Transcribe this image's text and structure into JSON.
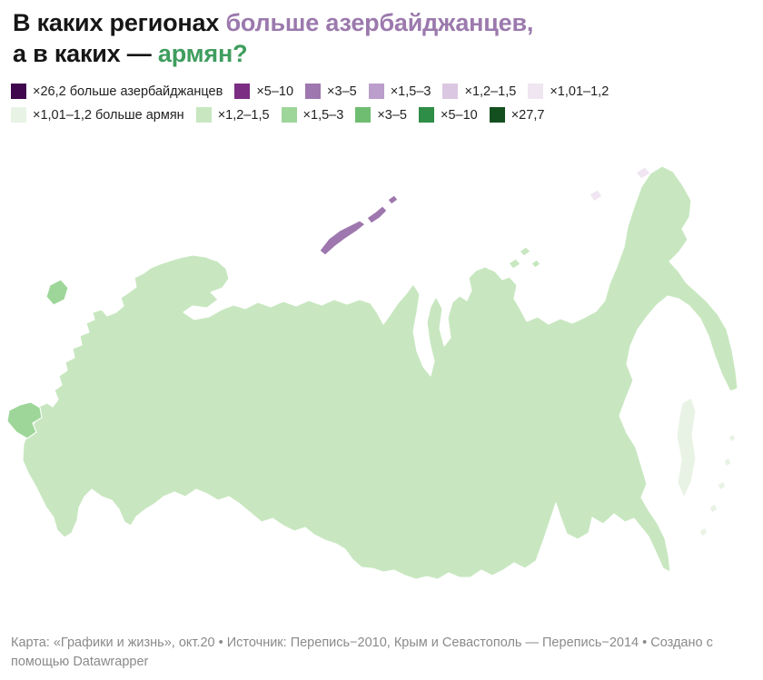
{
  "title": {
    "line1_black": "В каких регионах ",
    "line1_purple": "больше азербайджанцев,",
    "line2_black": "а в каких — ",
    "line2_green": "армян?",
    "purple_hex": "#9b79ad",
    "green_hex": "#3f9e5e",
    "black_hex": "#161616"
  },
  "footer": {
    "credits": "Карта: «Графики и жизнь», окт.20 • Источник: Перепись−2010, Крым и Севастополь — Перепись−2014 • Создано с помощью Datawrapper"
  },
  "chart_data": {
    "type": "choropleth-map",
    "geography": "Россия, субъекты федерации",
    "metric": "Во сколько раз азербайджанцев больше, чем армян (фиолетовый) или армян больше, чем азербайджанцев (зелёный)",
    "legend_position": "top",
    "buckets": [
      {
        "id": "az26_2",
        "side": "az",
        "label": "×26,2 больше азербайджанцев",
        "color": "#40074e"
      },
      {
        "id": "az5_10",
        "side": "az",
        "label": "×5–10",
        "color": "#7b2d84"
      },
      {
        "id": "az3_5",
        "side": "az",
        "label": "×3–5",
        "color": "#9e77ae"
      },
      {
        "id": "az1_5_3",
        "side": "az",
        "label": "×1,5–3",
        "color": "#bb9ecb"
      },
      {
        "id": "az1_2_1_5",
        "side": "az",
        "label": "×1,2–1,5",
        "color": "#dbc7e1"
      },
      {
        "id": "az1_01_1_2",
        "side": "az",
        "label": "×1,01–1,2",
        "color": "#efe6f2"
      },
      {
        "id": "arm1_01_1_2",
        "side": "arm",
        "label": "×1,01–1,2 больше армян",
        "color": "#e9f3e5"
      },
      {
        "id": "arm1_2_1_5",
        "side": "arm",
        "label": "×1,2–1,5",
        "color": "#c8e7c0"
      },
      {
        "id": "arm1_5_3",
        "side": "arm",
        "label": "×1,5–3",
        "color": "#9ed69a"
      },
      {
        "id": "arm3_5",
        "side": "arm",
        "label": "×3–5",
        "color": "#6fbd71"
      },
      {
        "id": "arm5_10",
        "side": "arm",
        "label": "×5–10",
        "color": "#2e8d46"
      },
      {
        "id": "arm27_7",
        "side": "arm",
        "label": "×27,7",
        "color": "#14501f"
      }
    ],
    "regions": [
      {
        "name": "other-regions-base",
        "bucket": "arm1_2_1_5"
      },
      {
        "name": "karelia-vologda",
        "bucket": "az1_01_1_2"
      },
      {
        "name": "kirov",
        "bucket": "az1_2_1_5"
      },
      {
        "name": "murmansk",
        "bucket": "az3_5"
      },
      {
        "name": "arkhangelsk",
        "bucket": "az1_5_3"
      },
      {
        "name": "nenets",
        "bucket": "az1_5_3"
      },
      {
        "name": "komi",
        "bucket": "az3_5"
      },
      {
        "name": "perm-sverdlovsk-tyumen",
        "bucket": "az3_5"
      },
      {
        "name": "krasnoyarsk",
        "bucket": "az3_5"
      },
      {
        "name": "yamalo-nenets-khanty-mansi",
        "bucket": "az5_10"
      },
      {
        "name": "chukotka",
        "bucket": "az1_01_1_2"
      },
      {
        "name": "magadan",
        "bucket": "az3_5"
      },
      {
        "name": "kamchatka",
        "bucket": "az3_5"
      },
      {
        "name": "khabarovsk",
        "bucket": "az1_5_3"
      },
      {
        "name": "amur",
        "bucket": "az1_5_3"
      },
      {
        "name": "jewish-ao",
        "bucket": "az3_5"
      },
      {
        "name": "primorsky",
        "bucket": "arm1_5_3"
      },
      {
        "name": "tuva",
        "bucket": "arm3_5"
      },
      {
        "name": "altai-krai",
        "bucket": "arm1_01_1_2"
      },
      {
        "name": "altai-republic",
        "bucket": "arm1_2_1_5"
      },
      {
        "name": "kemerovo",
        "bucket": "arm1_2_1_5"
      },
      {
        "name": "kurgan",
        "bucket": "arm1_2_1_5"
      },
      {
        "name": "omsk",
        "bucket": "az1_2_1_5"
      },
      {
        "name": "novosibirsk",
        "bucket": "az1_2_1_5"
      },
      {
        "name": "tomsk",
        "bucket": "az1_5_3"
      },
      {
        "name": "chelyabinsk-bashkortostan",
        "bucket": "az1_2_1_5"
      },
      {
        "name": "tatarstan",
        "bucket": "az3_5"
      },
      {
        "name": "mari-el",
        "bucket": "az3_5"
      },
      {
        "name": "saratov",
        "bucket": "az1_01_1_2"
      },
      {
        "name": "samara",
        "bucket": "arm1_01_1_2"
      },
      {
        "name": "kalmykia",
        "bucket": "az1_5_3"
      },
      {
        "name": "astrakhan",
        "bucket": "az1_2_1_5"
      },
      {
        "name": "rostov",
        "bucket": "arm1_5_3"
      },
      {
        "name": "moscow-oblast",
        "bucket": "arm1_5_3"
      },
      {
        "name": "moscow-city",
        "bucket": "arm3_5"
      },
      {
        "name": "bryansk",
        "bucket": "arm3_5"
      },
      {
        "name": "belgorod",
        "bucket": "arm1_5_3"
      },
      {
        "name": "stavropol",
        "bucket": "arm5_10"
      },
      {
        "name": "krasnodar",
        "bucket": "arm27_7"
      },
      {
        "name": "adygea",
        "bucket": "arm5_10"
      },
      {
        "name": "caucasus-republics",
        "bucket": "az1_2_1_5"
      },
      {
        "name": "dagestan",
        "bucket": "az26_2"
      },
      {
        "name": "kaliningrad",
        "bucket": "arm1_5_3"
      },
      {
        "name": "crimea",
        "bucket": "arm1_5_3"
      },
      {
        "name": "sakhalin",
        "bucket": "arm1_01_1_2"
      },
      {
        "name": "kuril-islands",
        "bucket": "arm1_01_1_2"
      },
      {
        "name": "novaya-zemlya",
        "bucket": "az3_5"
      },
      {
        "name": "severnaya-zemlya",
        "bucket": "arm1_2_1_5"
      },
      {
        "name": "new-siberian-islands",
        "bucket": "az1_01_1_2"
      },
      {
        "name": "wrangel-island",
        "bucket": "az1_01_1_2"
      }
    ]
  }
}
